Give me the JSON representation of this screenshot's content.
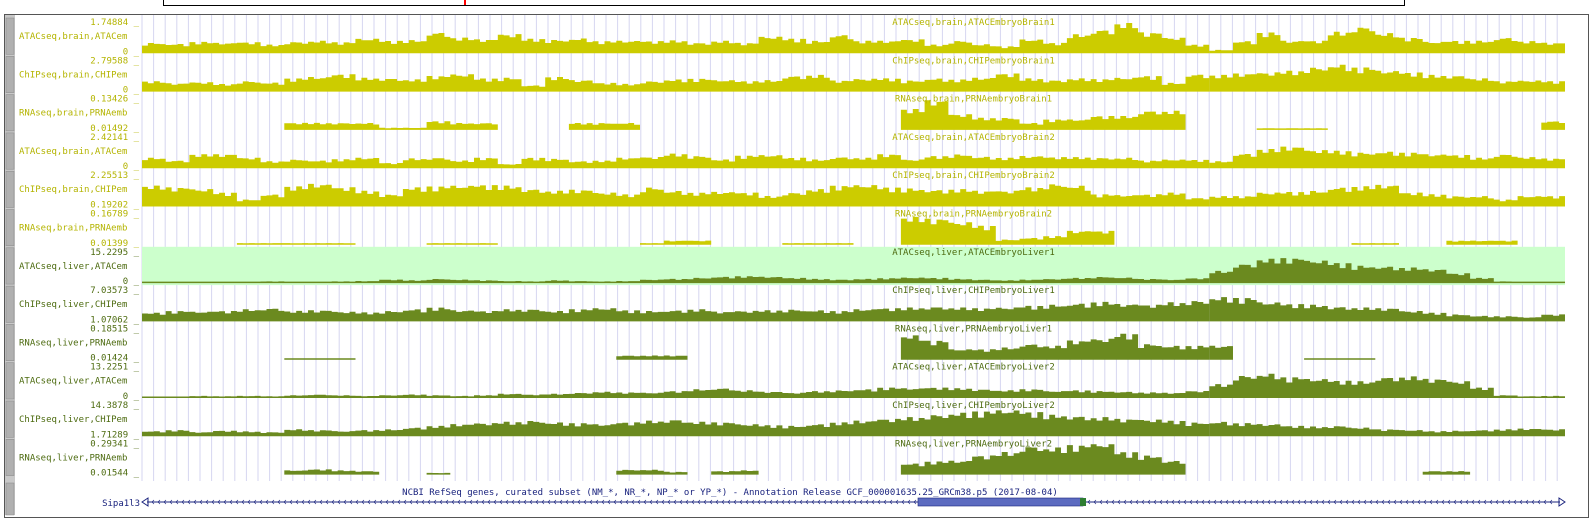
{
  "colors": {
    "brain": "#cccc00",
    "brain_text": "#b4b400",
    "liver": "#6b8a1f",
    "liver_text": "#4d6b10",
    "highlight": "#ccffcc",
    "gene": "#1a237e",
    "gene_block": "#5c6bc0",
    "grid": "#d6d6f0"
  },
  "tracks": [
    {
      "id": "t0",
      "title": "ATACseq,brain,ATACEmbryoBrain1",
      "label": "ATACseq,brain,ATACem",
      "max": "1.74884 _",
      "min": "0 _",
      "tissue": "brain",
      "profile": [
        0.3,
        0.27,
        0.33,
        0.3,
        0.32,
        0.25,
        0.33,
        0.36,
        0.32,
        0.42,
        0.36,
        0.38,
        0.6,
        0.45,
        0.4,
        0.55,
        0.42,
        0.39,
        0.43,
        0.35,
        0.36,
        0.35,
        0.37,
        0.3,
        0.36,
        0.3,
        0.48,
        0.42,
        0.36,
        0.53,
        0.36,
        0.36,
        0.4,
        0.25,
        0.36,
        0.26,
        0.2,
        0.4,
        0.3,
        0.55,
        0.68,
        0.88,
        0.6,
        0.45,
        0.25,
        0.1,
        0.35,
        0.6,
        0.36,
        0.36,
        0.62,
        0.76,
        0.58,
        0.45,
        0.33,
        0.36,
        0.36,
        0.45,
        0.35,
        0.3
      ]
    },
    {
      "id": "t1",
      "title": "ChIPseq,brain,CHIPembryoBrain1",
      "label": "ChIPseq,brain,CHIPem",
      "max": "2.79588 _",
      "min": "0 _",
      "tissue": "brain",
      "profile": [
        0.3,
        0.24,
        0.27,
        0.22,
        0.3,
        0.26,
        0.38,
        0.42,
        0.5,
        0.4,
        0.38,
        0.35,
        0.45,
        0.5,
        0.38,
        0.4,
        0.18,
        0.42,
        0.33,
        0.25,
        0.22,
        0.3,
        0.35,
        0.37,
        0.33,
        0.3,
        0.33,
        0.45,
        0.48,
        0.32,
        0.37,
        0.38,
        0.32,
        0.38,
        0.35,
        0.4,
        0.52,
        0.38,
        0.33,
        0.38,
        0.36,
        0.4,
        0.45,
        0.25,
        0.5,
        0.48,
        0.52,
        0.55,
        0.6,
        0.7,
        0.78,
        0.7,
        0.6,
        0.55,
        0.48,
        0.46,
        0.38,
        0.3,
        0.32,
        0.3
      ]
    },
    {
      "id": "t2",
      "title": "RNAseq,brain,PRNAembryoBrain1",
      "label": "RNAseq,brain,PRNAemb",
      "max": "0.13426 _",
      "min": "0.01492 _",
      "tissue": "brain",
      "profile": [
        0,
        0,
        0,
        0,
        0,
        0,
        0.2,
        0.2,
        0.2,
        0.2,
        0.06,
        0.06,
        0.25,
        0.2,
        0.2,
        0.0,
        0.0,
        0.0,
        0.2,
        0.2,
        0.2,
        0,
        0,
        0,
        0,
        0,
        0,
        0,
        0,
        0,
        0,
        0,
        0.6,
        0.85,
        0.45,
        0.35,
        0.35,
        0.2,
        0.3,
        0.3,
        0.4,
        0.4,
        0.55,
        0.55,
        0,
        0,
        0,
        0.05,
        0.05,
        0.05,
        0,
        0,
        0,
        0,
        0,
        0,
        0,
        0,
        0,
        0.25
      ]
    },
    {
      "id": "t3",
      "title": "ATACseq,brain,ATACEmbryoBrain2",
      "label": "ATACseq,brain,ATACem",
      "max": "2.42141 _",
      "min": "0 _",
      "tissue": "brain",
      "profile": [
        0.3,
        0.22,
        0.4,
        0.4,
        0.3,
        0.2,
        0.25,
        0.22,
        0.26,
        0.3,
        0.15,
        0.28,
        0.3,
        0.22,
        0.3,
        0.12,
        0.3,
        0.27,
        0.2,
        0.22,
        0.3,
        0.32,
        0.42,
        0.35,
        0.25,
        0.36,
        0.38,
        0.3,
        0.25,
        0.32,
        0.3,
        0.4,
        0.25,
        0.35,
        0.4,
        0.33,
        0.3,
        0.35,
        0.32,
        0.32,
        0.3,
        0.3,
        0.22,
        0.25,
        0.24,
        0.2,
        0.42,
        0.55,
        0.62,
        0.52,
        0.5,
        0.45,
        0.48,
        0.45,
        0.4,
        0.38,
        0.3,
        0.4,
        0.32,
        0.28
      ]
    },
    {
      "id": "t4",
      "title": "ChIPseq,brain,CHIPembryoBrain2",
      "label": "ChIPseq,brain,CHIPem",
      "max": "2.25513 _",
      "min": "0.19202 _",
      "tissue": "brain",
      "profile": [
        0.6,
        0.55,
        0.5,
        0.4,
        0.2,
        0.35,
        0.58,
        0.65,
        0.55,
        0.45,
        0.35,
        0.55,
        0.58,
        0.6,
        0.62,
        0.6,
        0.5,
        0.45,
        0.48,
        0.4,
        0.35,
        0.55,
        0.45,
        0.4,
        0.42,
        0.4,
        0.3,
        0.4,
        0.5,
        0.6,
        0.62,
        0.55,
        0.52,
        0.48,
        0.5,
        0.45,
        0.45,
        0.55,
        0.65,
        0.6,
        0.35,
        0.33,
        0.35,
        0.4,
        0.25,
        0.3,
        0.3,
        0.4,
        0.42,
        0.45,
        0.55,
        0.58,
        0.62,
        0.4,
        0.35,
        0.3,
        0.3,
        0.2,
        0.3,
        0.3
      ]
    },
    {
      "id": "t5",
      "title": "RNAseq,brain,PRNAembryoBrain2",
      "label": "RNAseq,brain,PRNAemb",
      "max": "0.16789 _",
      "min": "0.01399 _",
      "tissue": "brain",
      "profile": [
        0,
        0,
        0,
        0,
        0.05,
        0.05,
        0.05,
        0.05,
        0.05,
        0,
        0,
        0,
        0.05,
        0.05,
        0.05,
        0,
        0,
        0,
        0,
        0,
        0,
        0.05,
        0.12,
        0.12,
        0,
        0,
        0,
        0.05,
        0.05,
        0.05,
        0,
        0,
        0.8,
        0.75,
        0.65,
        0.55,
        0.15,
        0.2,
        0.25,
        0.4,
        0.4,
        0,
        0,
        0,
        0,
        0,
        0,
        0,
        0,
        0,
        0,
        0.05,
        0.05,
        0,
        0,
        0.12,
        0.12,
        0.12,
        0,
        0
      ]
    },
    {
      "id": "t6",
      "title": "ATACseq,liver,ATACEmbryoLiver1",
      "label": "ATACseq,liver,ATACem",
      "max": "15.2295 _",
      "min": "0 _",
      "tissue": "liver",
      "highlight": true,
      "profile": [
        0.03,
        0.02,
        0.03,
        0.04,
        0.03,
        0.05,
        0.04,
        0.03,
        0.05,
        0.06,
        0.1,
        0.08,
        0.12,
        0.1,
        0.08,
        0.06,
        0.05,
        0.08,
        0.06,
        0.05,
        0.06,
        0.1,
        0.12,
        0.15,
        0.18,
        0.2,
        0.18,
        0.15,
        0.12,
        0.1,
        0.12,
        0.14,
        0.16,
        0.15,
        0.12,
        0.1,
        0.08,
        0.1,
        0.12,
        0.15,
        0.18,
        0.16,
        0.12,
        0.1,
        0.14,
        0.35,
        0.55,
        0.7,
        0.72,
        0.65,
        0.58,
        0.5,
        0.48,
        0.45,
        0.4,
        0.28,
        0.15,
        0.05,
        0.04,
        0.04
      ]
    },
    {
      "id": "t7",
      "title": "ChIPseq,liver,CHIPembryoLiver1",
      "label": "ChIPseq,liver,CHIPem",
      "max": "7.03573 _",
      "min": "1.07062 _",
      "tissue": "liver",
      "profile": [
        0.25,
        0.3,
        0.28,
        0.3,
        0.35,
        0.38,
        0.3,
        0.32,
        0.28,
        0.26,
        0.3,
        0.35,
        0.4,
        0.32,
        0.3,
        0.35,
        0.35,
        0.3,
        0.35,
        0.38,
        0.32,
        0.3,
        0.32,
        0.35,
        0.28,
        0.3,
        0.32,
        0.34,
        0.32,
        0.3,
        0.35,
        0.38,
        0.4,
        0.42,
        0.4,
        0.38,
        0.4,
        0.45,
        0.48,
        0.52,
        0.56,
        0.5,
        0.48,
        0.55,
        0.6,
        0.7,
        0.68,
        0.55,
        0.5,
        0.48,
        0.42,
        0.4,
        0.38,
        0.3,
        0.25,
        0.2,
        0.16,
        0.15,
        0.12,
        0.2
      ]
    },
    {
      "id": "t8",
      "title": "RNAseq,liver,PRNAembryoLiver1",
      "label": "RNAseq,liver,PRNAemb",
      "max": "0.18515 _",
      "min": "0.01424 _",
      "tissue": "liver",
      "profile": [
        0,
        0,
        0,
        0,
        0,
        0,
        0.04,
        0.04,
        0.04,
        0,
        0,
        0,
        0,
        0,
        0,
        0,
        0,
        0,
        0,
        0,
        0.12,
        0.12,
        0.12,
        0,
        0,
        0,
        0,
        0,
        0,
        0,
        0,
        0,
        0.7,
        0.55,
        0.3,
        0.3,
        0.35,
        0.45,
        0.4,
        0.55,
        0.6,
        0.75,
        0.45,
        0.4,
        0.4,
        0.4,
        0,
        0,
        0,
        0.04,
        0.04,
        0.04,
        0,
        0,
        0,
        0,
        0,
        0,
        0,
        0
      ]
    },
    {
      "id": "t9",
      "title": "ATACseq,liver,ATACEmbryoLiver2",
      "label": "ATACseq,liver,ATACem",
      "max": "13.2251 _",
      "min": "0 _",
      "tissue": "liver",
      "profile": [
        0.04,
        0.03,
        0.06,
        0.05,
        0.06,
        0.05,
        0.08,
        0.1,
        0.08,
        0.06,
        0.08,
        0.1,
        0.08,
        0.06,
        0.08,
        0.12,
        0.1,
        0.12,
        0.15,
        0.18,
        0.16,
        0.15,
        0.2,
        0.25,
        0.28,
        0.22,
        0.18,
        0.15,
        0.2,
        0.22,
        0.25,
        0.3,
        0.28,
        0.3,
        0.28,
        0.25,
        0.22,
        0.25,
        0.2,
        0.22,
        0.2,
        0.18,
        0.16,
        0.15,
        0.2,
        0.4,
        0.65,
        0.7,
        0.6,
        0.55,
        0.5,
        0.48,
        0.6,
        0.62,
        0.55,
        0.48,
        0.3,
        0.08,
        0.05,
        0.06
      ]
    },
    {
      "id": "t10",
      "title": "ChIPseq,liver,CHIPembryoLiver2",
      "label": "ChIPseq,liver,CHIPem",
      "max": "14.3878 _",
      "min": "1.71289 _",
      "tissue": "liver",
      "profile": [
        0.15,
        0.18,
        0.12,
        0.16,
        0.14,
        0.12,
        0.2,
        0.18,
        0.15,
        0.18,
        0.2,
        0.25,
        0.3,
        0.35,
        0.38,
        0.42,
        0.45,
        0.4,
        0.38,
        0.35,
        0.4,
        0.45,
        0.48,
        0.42,
        0.4,
        0.35,
        0.32,
        0.3,
        0.35,
        0.4,
        0.45,
        0.5,
        0.55,
        0.62,
        0.68,
        0.72,
        0.75,
        0.7,
        0.62,
        0.58,
        0.55,
        0.5,
        0.48,
        0.45,
        0.4,
        0.42,
        0.38,
        0.35,
        0.3,
        0.28,
        0.3,
        0.25,
        0.2,
        0.18,
        0.15,
        0.16,
        0.18,
        0.2,
        0.22,
        0.2
      ]
    },
    {
      "id": "t11",
      "title": "RNAseq,liver,PRNAembryoLiver2",
      "label": "RNAseq,liver,PRNAemb",
      "max": "0.29341 _",
      "min": "0.01544 _",
      "tissue": "liver",
      "profile": [
        0,
        0,
        0,
        0,
        0,
        0,
        0.12,
        0.15,
        0.12,
        0.1,
        0,
        0,
        0.05,
        0,
        0,
        0,
        0,
        0,
        0,
        0,
        0.14,
        0.14,
        0.08,
        0,
        0.1,
        0.12,
        0,
        0,
        0,
        0,
        0,
        0,
        0.32,
        0.38,
        0.4,
        0.55,
        0.65,
        0.82,
        0.78,
        0.85,
        0.9,
        0.65,
        0.55,
        0.4,
        0,
        0,
        0,
        0,
        0,
        0,
        0,
        0,
        0,
        0,
        0.1,
        0.1,
        0,
        0,
        0,
        0
      ]
    }
  ],
  "gene_track": {
    "title": "NCBI RefSeq genes, curated subset (NM_*, NR_*, NP_* or YP_*) - Annotation Release GCF_000001635.25_GRCm38.p5 (2017-08-04)",
    "gene_name": "Sipa1l3"
  }
}
